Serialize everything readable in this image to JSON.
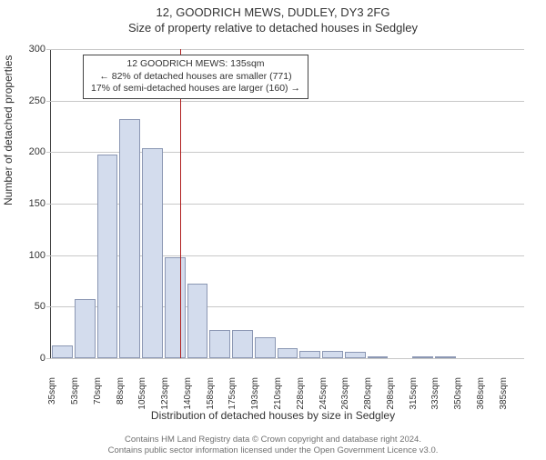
{
  "header": {
    "address": "12, GOODRICH MEWS, DUDLEY, DY3 2FG",
    "subtitle": "Size of property relative to detached houses in Sedgley"
  },
  "axes": {
    "ylabel": "Number of detached properties",
    "xlabel": "Distribution of detached houses by size in Sedgley",
    "ymax": 300,
    "ytick_step": 50,
    "yticks": [
      0,
      50,
      100,
      150,
      200,
      250,
      300
    ]
  },
  "infobox": {
    "line1": "12 GOODRICH MEWS: 135sqm",
    "line2": "← 82% of detached houses are smaller (771)",
    "line3": "17% of semi-detached houses are larger (160) →"
  },
  "reference": {
    "value_sqm": 135,
    "line_color": "#b02020"
  },
  "chart": {
    "type": "histogram",
    "bar_fill": "#d3dced",
    "bar_border": "#8b97b3",
    "grid_color": "#c8c8c8",
    "background_color": "#ffffff",
    "bin_width_sqm": 17.5,
    "categories": [
      "35sqm",
      "53sqm",
      "70sqm",
      "88sqm",
      "105sqm",
      "123sqm",
      "140sqm",
      "158sqm",
      "175sqm",
      "193sqm",
      "210sqm",
      "228sqm",
      "245sqm",
      "263sqm",
      "280sqm",
      "298sqm",
      "315sqm",
      "333sqm",
      "350sqm",
      "368sqm",
      "385sqm"
    ],
    "values": [
      12,
      57,
      198,
      232,
      204,
      98,
      72,
      27,
      27,
      20,
      10,
      7,
      7,
      6,
      2,
      0,
      2,
      2,
      0,
      0,
      0
    ]
  },
  "footer": {
    "line1": "Contains HM Land Registry data © Crown copyright and database right 2024.",
    "line2": "Contains public sector information licensed under the Open Government Licence v3.0."
  }
}
